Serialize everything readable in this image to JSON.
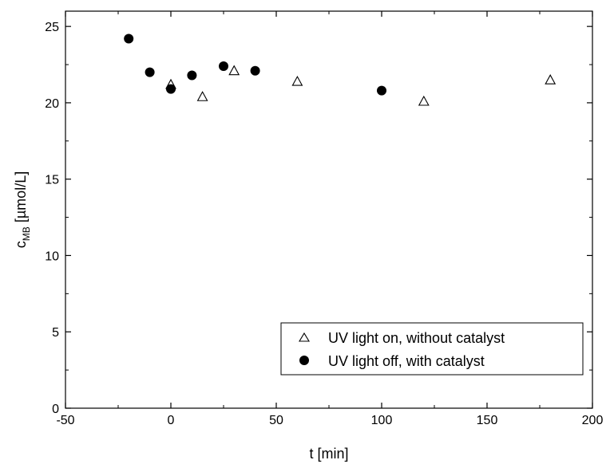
{
  "chart_data": {
    "type": "scatter",
    "xlabel": "t [min]",
    "ylabel_main": "c",
    "ylabel_sub": "MB",
    "ylabel_unit": " [µmol/L]",
    "xlim": [
      -50,
      200
    ],
    "ylim": [
      0,
      26
    ],
    "xticks": [
      -50,
      0,
      50,
      100,
      150,
      200
    ],
    "yticks": [
      0,
      5,
      10,
      15,
      20,
      25
    ],
    "grid": false,
    "legend_position": "bottom-right",
    "series": [
      {
        "name": "UV light on, without catalyst",
        "marker": "open-triangle",
        "color": "#000000",
        "points": [
          {
            "x": 0,
            "y": 21.2
          },
          {
            "x": 15,
            "y": 20.4
          },
          {
            "x": 30,
            "y": 22.1
          },
          {
            "x": 60,
            "y": 21.4
          },
          {
            "x": 120,
            "y": 20.1
          },
          {
            "x": 180,
            "y": 21.5
          }
        ]
      },
      {
        "name": "UV light off, with catalyst",
        "marker": "filled-circle",
        "color": "#000000",
        "points": [
          {
            "x": -20,
            "y": 24.2
          },
          {
            "x": -10,
            "y": 22.0
          },
          {
            "x": 0,
            "y": 20.9
          },
          {
            "x": 10,
            "y": 21.8
          },
          {
            "x": 25,
            "y": 22.4
          },
          {
            "x": 40,
            "y": 22.1
          },
          {
            "x": 100,
            "y": 20.8
          }
        ]
      }
    ]
  }
}
